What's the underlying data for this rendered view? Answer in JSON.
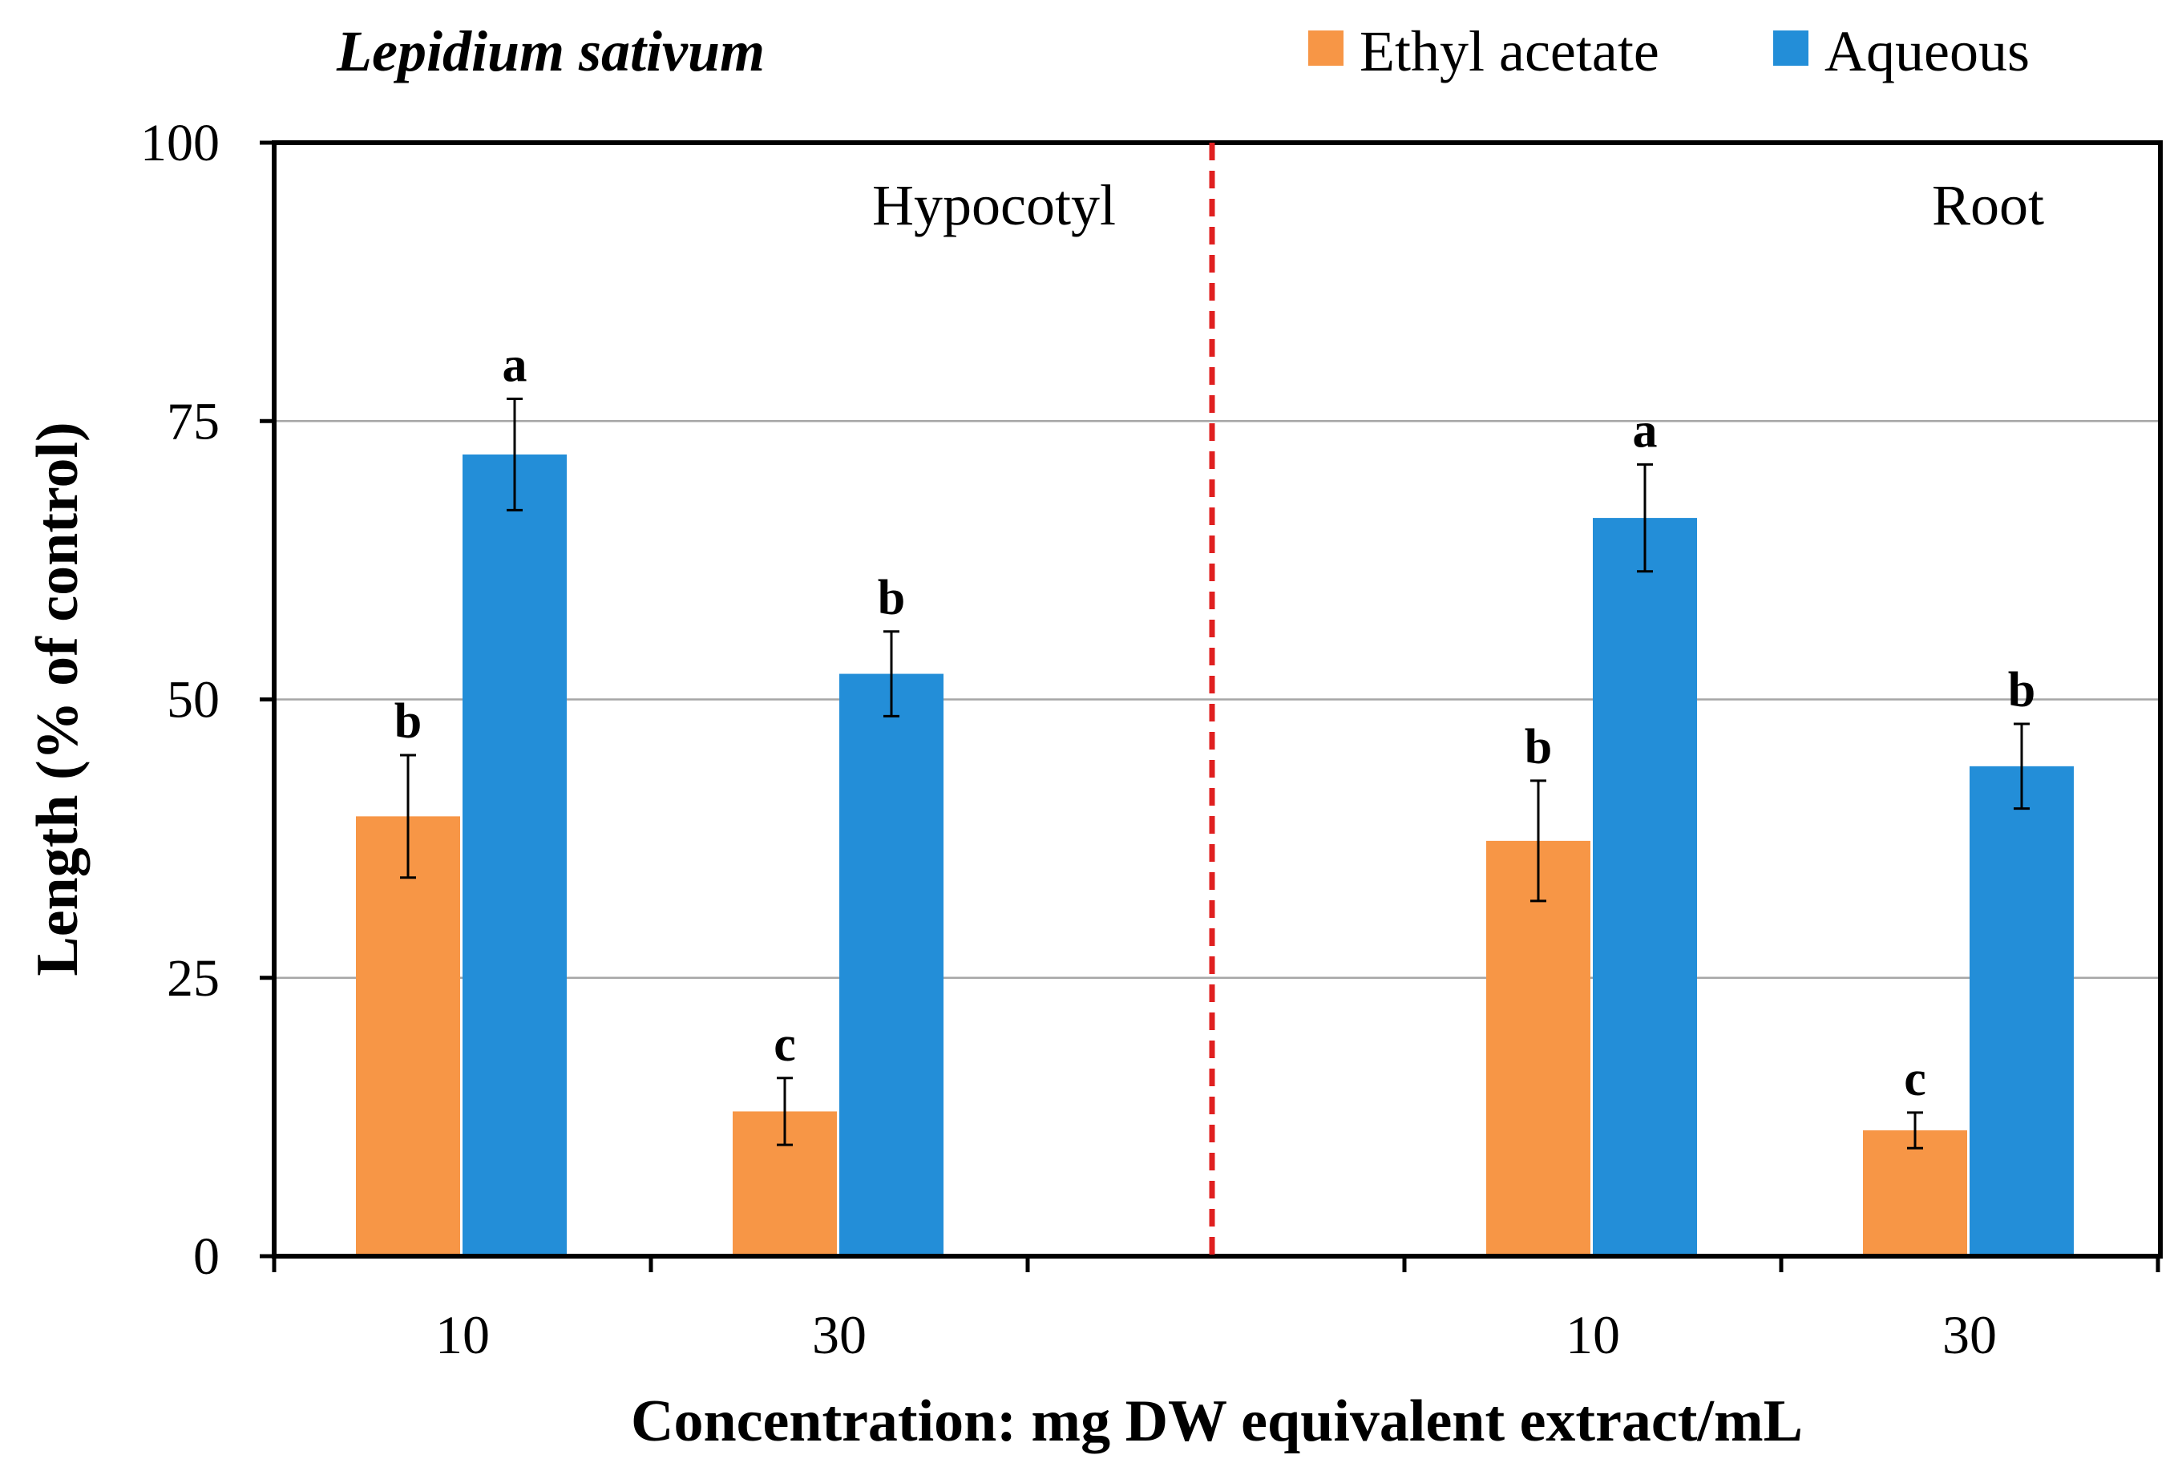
{
  "chart_data": {
    "type": "bar",
    "title": "Lepidium sativum",
    "xlabel": "Concentration: mg DW equivalent extract/mL",
    "ylabel": "Length (% of control)",
    "ylim": [
      0,
      100
    ],
    "yticks": [
      "0",
      "25",
      "50",
      "75",
      "100"
    ],
    "grid": true,
    "legend_position": "top-right",
    "colors": {
      "Ethyl acetate": "#F79646",
      "Aqueous": "#238ED8",
      "divider": "#E02020"
    },
    "panels": [
      {
        "label": "Hypocotyl",
        "categories": [
          "10",
          "30"
        ],
        "series": [
          {
            "name": "Ethyl acetate",
            "values": [
              39.5,
              13.0
            ],
            "errors": [
              5.5,
              3.0
            ],
            "letters": [
              "b",
              "c"
            ]
          },
          {
            "name": "Aqueous",
            "values": [
              72.0,
              52.3
            ],
            "errors": [
              5.0,
              3.8
            ],
            "letters": [
              "a",
              "b"
            ]
          }
        ]
      },
      {
        "label": "Root",
        "categories": [
          "10",
          "30"
        ],
        "series": [
          {
            "name": "Ethyl acetate",
            "values": [
              37.3,
              11.3
            ],
            "errors": [
              5.4,
              1.6
            ],
            "letters": [
              "b",
              "c"
            ]
          },
          {
            "name": "Aqueous",
            "values": [
              66.3,
              44.0
            ],
            "errors": [
              4.8,
              3.8
            ],
            "letters": [
              "a",
              "b"
            ]
          }
        ]
      }
    ]
  }
}
